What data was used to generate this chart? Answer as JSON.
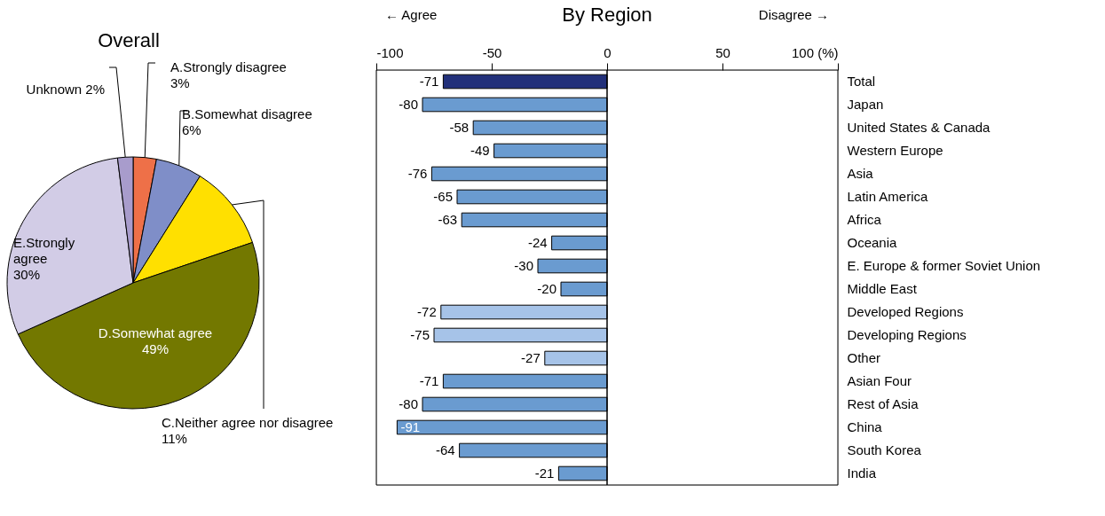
{
  "chart_data": [
    {
      "type": "pie",
      "title": "Overall",
      "categories": [
        "A.Strongly disagree",
        "B.Somewhat disagree",
        "C.Neither agree nor disagree",
        "D.Somewhat agree",
        "E.Strongly agree",
        "Unknown"
      ],
      "values": [
        3,
        6,
        11,
        49,
        30,
        2
      ],
      "value_labels": [
        "3%",
        "6%",
        "11%",
        "49%",
        "30%",
        "2%"
      ],
      "colors": [
        "#ee7048",
        "#7f8ec8",
        "#ffe000",
        "#737800",
        "#d2cce6",
        "#a89ccc"
      ],
      "legend": false
    },
    {
      "type": "bar",
      "orientation": "horizontal",
      "title": "By Region",
      "categories": [
        "Total",
        "Japan",
        "United States & Canada",
        "Western Europe",
        "Asia",
        "Latin America",
        "Africa",
        "Oceania",
        "E. Europe & former Soviet Union",
        "Middle East",
        "Developed Regions",
        "Developing Regions",
        "Other",
        "Asian Four",
        "Rest of Asia",
        "China",
        "South Korea",
        "India"
      ],
      "values": [
        -71,
        -80,
        -58,
        -49,
        -76,
        -65,
        -63,
        -24,
        -30,
        -20,
        -72,
        -75,
        -27,
        -71,
        -80,
        -91,
        -64,
        -21
      ],
      "colors": [
        "#22307a",
        "#6a9bd0",
        "#6a9bd0",
        "#6a9bd0",
        "#6a9bd0",
        "#6a9bd0",
        "#6a9bd0",
        "#6a9bd0",
        "#6a9bd0",
        "#6a9bd0",
        "#a6c3e8",
        "#a6c3e8",
        "#a6c3e8",
        "#6a9bd0",
        "#6a9bd0",
        "#6a9bd0",
        "#6a9bd0",
        "#6a9bd0"
      ],
      "xlim": [
        -100,
        100
      ],
      "xticks": [
        -100,
        -50,
        0,
        50,
        {
          "value": 100,
          "label": "100 (%)"
        }
      ],
      "ref_lines": [
        {
          "axis": "x",
          "value": 0,
          "color": "#000000"
        }
      ],
      "annotations": [
        "← Agree",
        "Disagree →"
      ],
      "data_labels": true,
      "grid": false,
      "legend": false
    }
  ]
}
